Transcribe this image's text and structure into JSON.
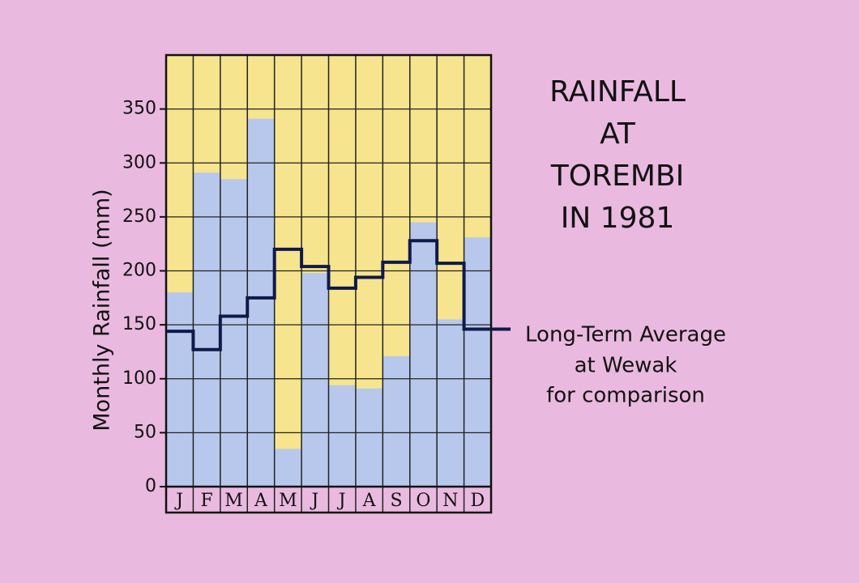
{
  "chart_data": {
    "type": "bar",
    "title_lines": [
      "RAINFALL",
      "AT",
      "TOREMBI",
      "IN 1981"
    ],
    "y_label": "Monthly  Rainfall (mm)",
    "categories": [
      "J",
      "F",
      "M",
      "A",
      "M",
      "J",
      "J",
      "A",
      "S",
      "O",
      "N",
      "D"
    ],
    "series": [
      {
        "type": "bar",
        "color": "#b8c8ec",
        "values": [
          180,
          291,
          285,
          341,
          35,
          198,
          94,
          91,
          121,
          245,
          155,
          231
        ]
      },
      {
        "type": "step",
        "name": "Long-Term Average",
        "annotation": [
          "at Wewak",
          "for comparison"
        ],
        "color": "#0f1a4a",
        "values": [
          144,
          127,
          158,
          175,
          220,
          204,
          184,
          194,
          208,
          228,
          207,
          146
        ]
      }
    ],
    "plot_background": "#f6e48e",
    "ylim": [
      0,
      400
    ],
    "yticks": [
      0,
      50,
      100,
      150,
      200,
      250,
      300,
      350
    ],
    "grid": true
  }
}
